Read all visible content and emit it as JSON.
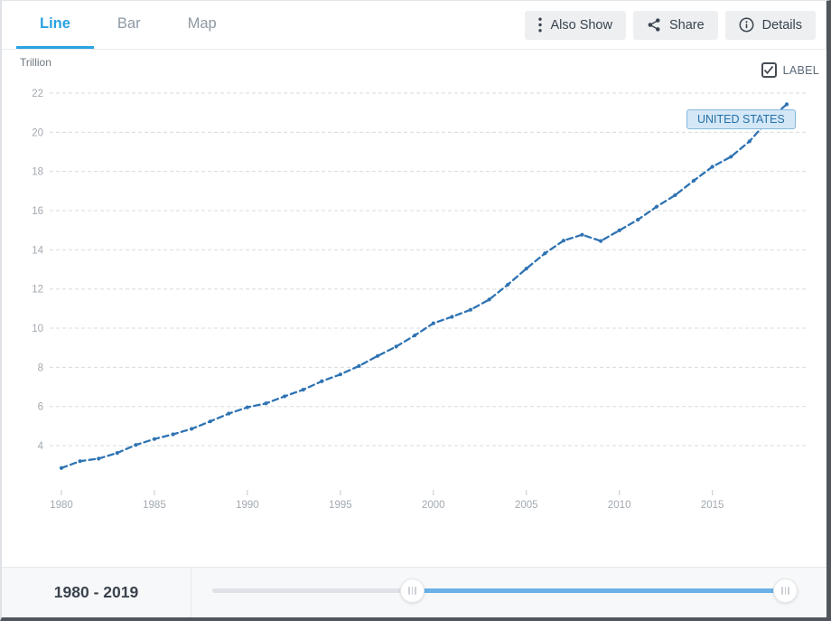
{
  "tabs": [
    {
      "label": "Line",
      "active": true
    },
    {
      "label": "Bar",
      "active": false
    },
    {
      "label": "Map",
      "active": false
    }
  ],
  "actions": {
    "also_show": "Also Show",
    "share": "Share",
    "details": "Details"
  },
  "chart": {
    "unit_label": "Trillion",
    "label_toggle": "LABEL",
    "label_toggle_checked": true,
    "series_label": "UNITED STATES"
  },
  "footer": {
    "range_label": "1980 - 2019"
  },
  "colors": {
    "accent": "#29a2e0",
    "line": "#2e73b3",
    "slider_fill": "#69b1e6",
    "series_label_bg": "#d4e7f7"
  },
  "chart_data": {
    "type": "line",
    "title": "",
    "ylabel": "Trillion",
    "xlabel": "",
    "grid": "dashed-horizontal",
    "legend_position": "inline-label-near-last-point",
    "ylim": [
      2.4,
      22.9
    ],
    "xlim": [
      1980,
      2019
    ],
    "y_ticks": [
      4,
      6,
      8,
      10,
      12,
      14,
      16,
      18,
      20,
      22
    ],
    "x_ticks": [
      1980,
      1985,
      1990,
      1995,
      2000,
      2005,
      2010,
      2015
    ],
    "x": [
      1980,
      1981,
      1982,
      1983,
      1984,
      1985,
      1986,
      1987,
      1988,
      1989,
      1990,
      1991,
      1992,
      1993,
      1994,
      1995,
      1996,
      1997,
      1998,
      1999,
      2000,
      2001,
      2002,
      2003,
      2004,
      2005,
      2006,
      2007,
      2008,
      2009,
      2010,
      2011,
      2012,
      2013,
      2014,
      2015,
      2016,
      2017,
      2018,
      2019
    ],
    "series": [
      {
        "name": "United States",
        "values": [
          2.86,
          3.21,
          3.34,
          3.63,
          4.04,
          4.34,
          4.58,
          4.86,
          5.24,
          5.64,
          5.96,
          6.16,
          6.52,
          6.86,
          7.29,
          7.64,
          8.07,
          8.58,
          9.06,
          9.63,
          10.25,
          10.58,
          10.94,
          11.46,
          12.22,
          13.04,
          13.82,
          14.47,
          14.77,
          14.45,
          14.99,
          15.54,
          16.2,
          16.79,
          17.53,
          18.24,
          18.75,
          19.54,
          20.61,
          21.43
        ]
      }
    ]
  }
}
